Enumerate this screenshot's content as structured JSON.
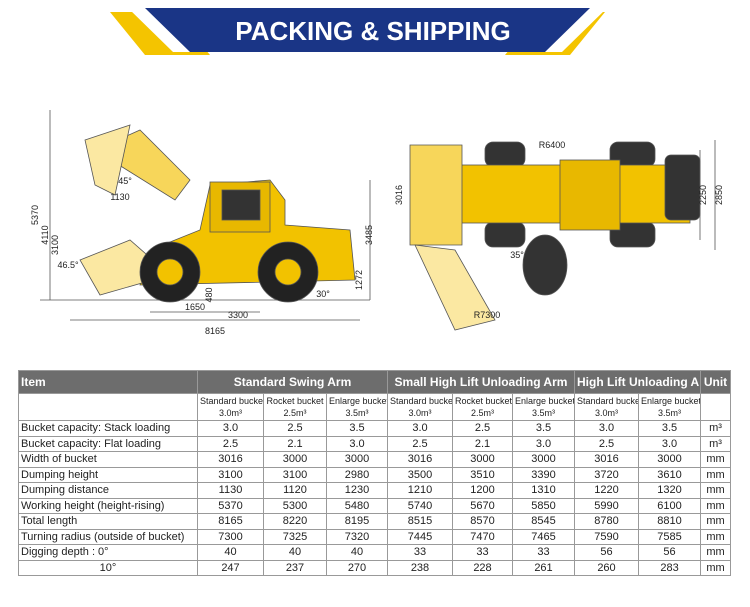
{
  "banner": {
    "title": "PACKING & SHIPPING"
  },
  "drawing_left": {
    "labels": [
      "5370",
      "4110",
      "3100",
      "45°",
      "1130",
      "46.5°",
      "1650",
      "3300",
      "8165",
      "3485",
      "1272",
      "30°",
      "480"
    ]
  },
  "drawing_right": {
    "labels": [
      "R6400",
      "3016",
      "2250",
      "2850",
      "35°",
      "R7300"
    ]
  },
  "table": {
    "header": [
      "Item",
      "Standard Swing Arm",
      "Small High Lift Unloading Arm",
      "High Lift Unloading Arm",
      "Unit"
    ],
    "subheader": [
      [
        "Standard bucket",
        "3.0m³"
      ],
      [
        "Rocket bucket",
        "2.5m³"
      ],
      [
        "Enlarge bucket",
        "3.5m³"
      ],
      [
        "Standard bucket",
        "3.0m³"
      ],
      [
        "Rocket bucket",
        "2.5m³"
      ],
      [
        "Enlarge bucket",
        "3.5m³"
      ],
      [
        "Standard bucket",
        "3.0m³"
      ],
      [
        "Enlarge bucket",
        "3.5m³"
      ]
    ],
    "rows": [
      [
        "Bucket capacity: Stack loading",
        "3.0",
        "2.5",
        "3.5",
        "3.0",
        "2.5",
        "3.5",
        "3.0",
        "3.5",
        "m³"
      ],
      [
        "Bucket capacity: Flat loading",
        "2.5",
        "2.1",
        "3.0",
        "2.5",
        "2.1",
        "3.0",
        "2.5",
        "3.0",
        "m³"
      ],
      [
        "Width of bucket",
        "3016",
        "3000",
        "3000",
        "3016",
        "3000",
        "3000",
        "3016",
        "3000",
        "mm"
      ],
      [
        "Dumping height",
        "3100",
        "3100",
        "2980",
        "3500",
        "3510",
        "3390",
        "3720",
        "3610",
        "mm"
      ],
      [
        "Dumping distance",
        "1130",
        "1120",
        "1230",
        "1210",
        "1200",
        "1310",
        "1220",
        "1320",
        "mm"
      ],
      [
        "Working height (height-rising)",
        "5370",
        "5300",
        "5480",
        "5740",
        "5670",
        "5850",
        "5990",
        "6100",
        "mm"
      ],
      [
        "Total length",
        "8165",
        "8220",
        "8195",
        "8515",
        "8570",
        "8545",
        "8780",
        "8810",
        "mm"
      ],
      [
        "Turning radius (outside of bucket)",
        "7300",
        "7325",
        "7320",
        "7445",
        "7470",
        "7465",
        "7590",
        "7585",
        "mm"
      ],
      [
        "Digging depth : 0°",
        "40",
        "40",
        "40",
        "33",
        "33",
        "33",
        "56",
        "56",
        "mm"
      ],
      [
        "10°",
        "247",
        "237",
        "270",
        "238",
        "228",
        "261",
        "260",
        "283",
        "mm"
      ]
    ]
  }
}
